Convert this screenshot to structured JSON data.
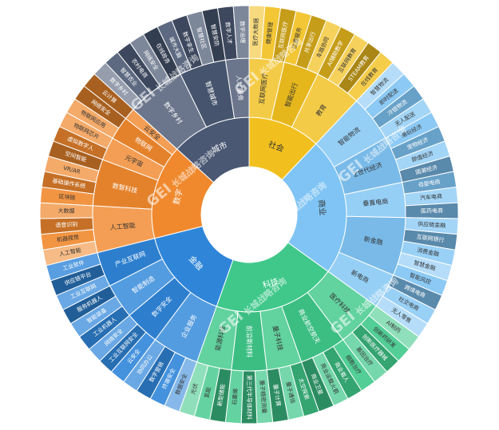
{
  "chart_data": {
    "type": "sunburst",
    "watermark": {
      "brand": "GEI",
      "text": "长城战略咨询"
    },
    "colors": {
      "社会": "#f2c01e",
      "商业": "#7fc4f4",
      "科技": "#3fc88a",
      "金融": "#2f86d9",
      "数字": "#f0892e",
      "城市": "#4a5873"
    },
    "tree": [
      {
        "name": "社会",
        "children": [
          {
            "name": "互联网医疗",
            "children": [
              {
                "name": "医疗大数据"
              },
              {
                "name": "健康管理"
              },
              {
                "name": "互联网医疗"
              }
            ]
          },
          {
            "name": "智能出行",
            "children": [
              {
                "name": "位置服务"
              },
              {
                "name": "共享出行"
              },
              {
                "name": "车路协同"
              }
            ]
          },
          {
            "name": "教育",
            "children": [
              {
                "name": "AI辅助教学"
              },
              {
                "name": "互联网教育"
              },
              {
                "name": "STEAM教育"
              },
              {
                "name": "在线教育"
              }
            ]
          }
        ]
      },
      {
        "name": "商业",
        "children": [
          {
            "name": "智能物流",
            "children": [
              {
                "name": "智慧物流"
              },
              {
                "name": "即时配送"
              },
              {
                "name": "冷链物流"
              },
              {
                "name": "无人配送"
              }
            ]
          },
          {
            "name": "Z世代经济",
            "children": [
              {
                "name": "潮玩经济"
              },
              {
                "name": "宠物经济"
              },
              {
                "name": "颜值经济"
              },
              {
                "name": "国潮经济"
              }
            ]
          },
          {
            "name": "垂直电商",
            "children": [
              {
                "name": "母婴电商"
              },
              {
                "name": "汽车电商"
              },
              {
                "name": "医药电商"
              }
            ]
          },
          {
            "name": "新金融",
            "children": [
              {
                "name": "供应链金融"
              },
              {
                "name": "互联网银行"
              },
              {
                "name": "消费金融"
              },
              {
                "name": "智慧金融"
              },
              {
                "name": "智能风控"
              }
            ]
          },
          {
            "name": "新电商",
            "children": [
              {
                "name": "跨境电商"
              },
              {
                "name": "社交电商"
              },
              {
                "name": "无人零售"
              }
            ]
          }
        ]
      },
      {
        "name": "科技",
        "children": [
          {
            "name": "医疗科技",
            "children": [
              {
                "name": "AI制药"
              },
              {
                "name": "创新药研发"
              },
              {
                "name": "创新医疗器械"
              },
              {
                "name": "基因治疗"
              }
            ]
          },
          {
            "name": "商业航空航天",
            "children": [
              {
                "name": "细胞治疗"
              },
              {
                "name": "商业载人"
              },
              {
                "name": "商业运载火箭"
              },
              {
                "name": "商业卫星"
              }
            ]
          },
          {
            "name": "量子科技",
            "children": [
              {
                "name": "太空探索"
              },
              {
                "name": "量子通信"
              },
              {
                "name": "量子计算"
              }
            ]
          },
          {
            "name": "前沿新材料",
            "children": [
              {
                "name": "量子精密测量"
              },
              {
                "name": "第三代半导体材料"
              },
              {
                "name": "石墨烯"
              }
            ]
          },
          {
            "name": "能源科技",
            "children": [
              {
                "name": "新型储能"
              },
              {
                "name": "氢能"
              },
              {
                "name": "光伏"
              }
            ]
          }
        ]
      },
      {
        "name": "金融",
        "children": [
          {
            "name": "企业服务",
            "children": [
              {
                "name": "数据安全"
              },
              {
                "name": "终端安全"
              },
              {
                "name": "数字营销"
              },
              {
                "name": "协同办公"
              }
            ]
          },
          {
            "name": "数字安全",
            "children": [
              {
                "name": "云安全"
              },
              {
                "name": "工业互联网安全"
              },
              {
                "name": "网络安全"
              }
            ]
          },
          {
            "name": "智能制造",
            "children": [
              {
                "name": "工业机器人"
              },
              {
                "name": "智能装备"
              },
              {
                "name": "服务机器人"
              }
            ]
          },
          {
            "name": "产业互联网",
            "children": [
              {
                "name": "工业互联网"
              },
              {
                "name": "供应链平台"
              },
              {
                "name": "工业软件"
              }
            ]
          }
        ]
      },
      {
        "name": "数字",
        "children": [
          {
            "name": "人工智能",
            "children": [
              {
                "name": "人工智能"
              },
              {
                "name": "机器视觉"
              },
              {
                "name": "语音识别"
              },
              {
                "name": "大数据"
              }
            ]
          },
          {
            "name": "数智科技",
            "children": [
              {
                "name": "区块链"
              },
              {
                "name": "基础操作系统"
              },
              {
                "name": "VR/AR"
              },
              {
                "name": "空间智能"
              }
            ]
          },
          {
            "name": "元宇宙",
            "children": [
              {
                "name": "虚拟数字人"
              },
              {
                "name": "物联网芯片"
              }
            ]
          },
          {
            "name": "物联网",
            "children": [
              {
                "name": "物联网应用"
              },
              {
                "name": "网络安全"
              }
            ]
          },
          {
            "name": "云安全",
            "children": [
              {
                "name": "云计算"
              }
            ]
          }
        ]
      },
      {
        "name": "城市",
        "children": [
          {
            "name": "数字乡村",
            "children": [
              {
                "name": "数字乡村"
              },
              {
                "name": "智慧农业"
              },
              {
                "name": "农村电商"
              },
              {
                "name": "网络安全"
              },
              {
                "name": "在线政务"
              }
            ]
          },
          {
            "name": "智慧城市",
            "children": [
              {
                "name": "城市大脑"
              },
              {
                "name": "数字孪生"
              },
              {
                "name": "智慧社区"
              },
              {
                "name": "智慧安防"
              }
            ]
          },
          {
            "name": "人才服务",
            "children": [
              {
                "name": "数字人才"
              },
              {
                "name": "数字治理"
              }
            ]
          }
        ]
      }
    ]
  }
}
